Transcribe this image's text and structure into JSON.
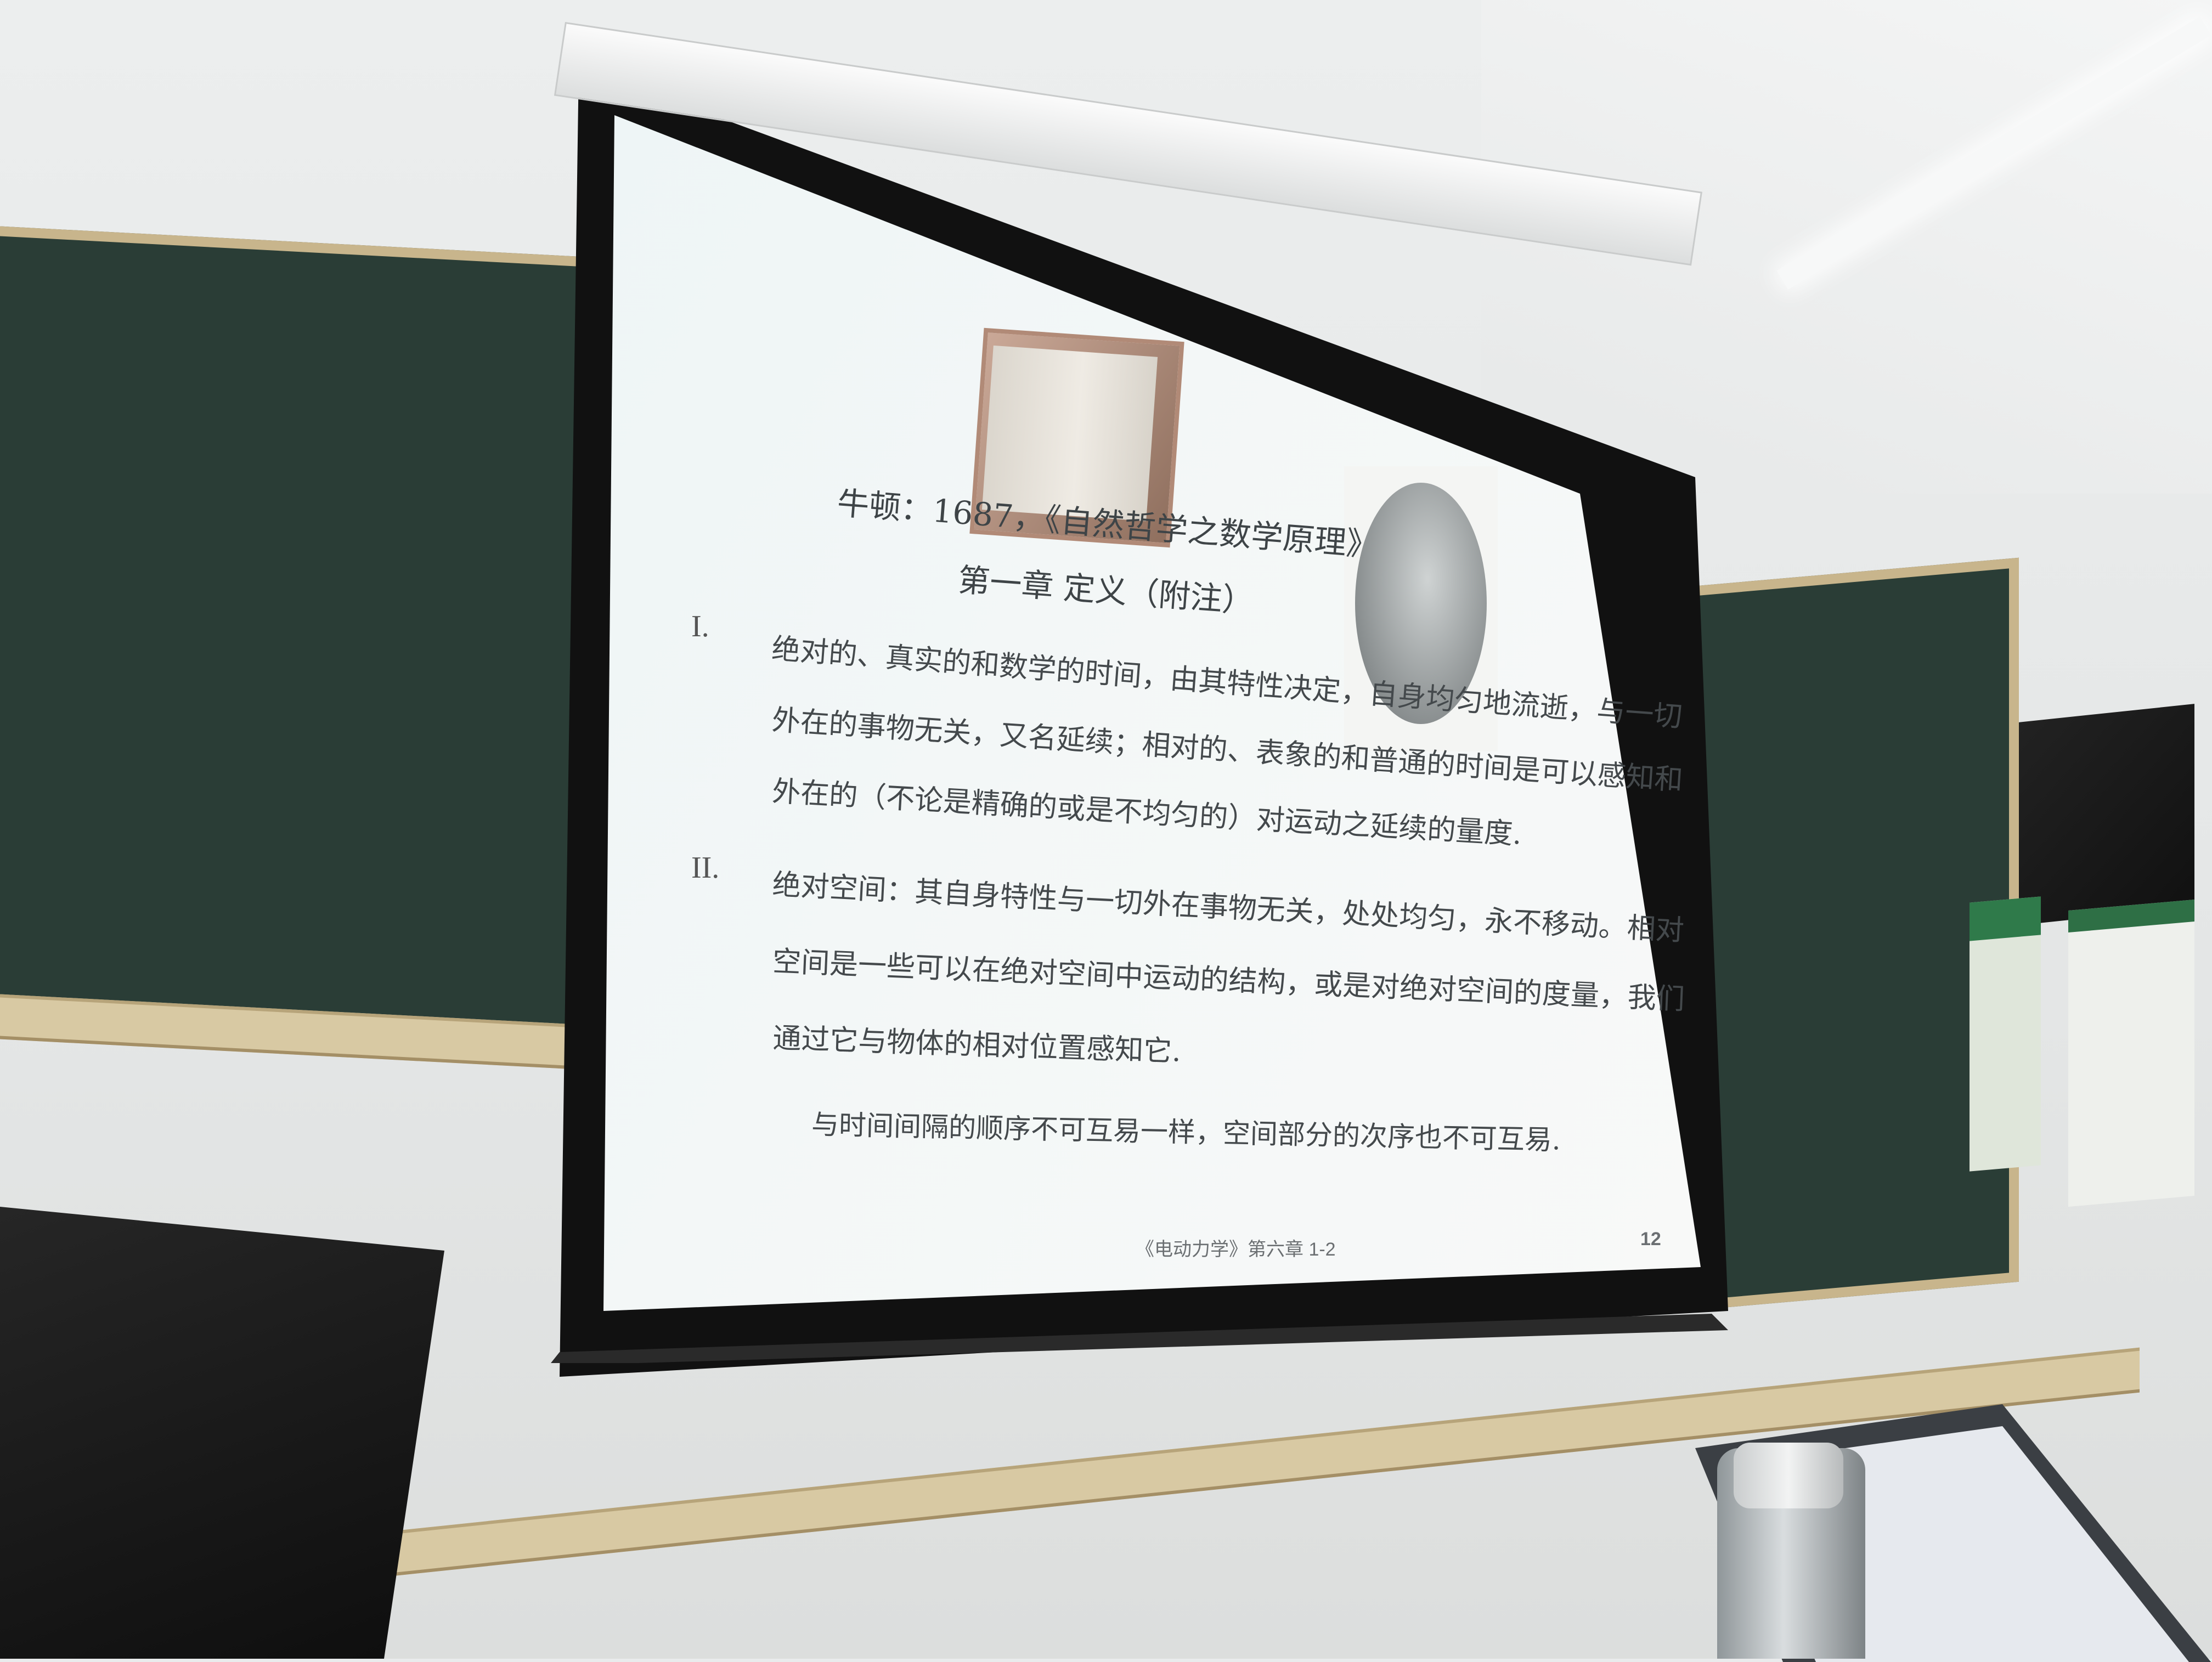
{
  "slide": {
    "title": "牛顿：1687，《自然哲学之数学原理》",
    "subtitle": "第一章 定义（附注）",
    "section1_num": "I.",
    "section1_lines": [
      "绝对的、真实的和数学的时间，由其特性决定，自身均匀地流逝，与一切",
      "外在的事物无关，又名延续；相对的、表象的和普通的时间是可以感知和",
      "外在的（不论是精确的或是不均匀的）对运动之延续的量度."
    ],
    "section2_num": "II.",
    "section2_lines": [
      "绝对空间：其自身特性与一切外在事物无关，处处均匀，永不移动。相对",
      "空间是一些可以在绝对空间中运动的结构，或是对绝对空间的度量，我们",
      "通过它与物体的相对位置感知它."
    ],
    "closing": "与时间间隔的顺序不可互易一样，空间部分的次序也不可互易.",
    "footer_course": "《电动力学》第六章 1-2",
    "page_number": "12"
  },
  "colors": {
    "chalkboard": "#2a3d36",
    "slide_bg": "#f3f7f7",
    "text": "#3e4447"
  }
}
